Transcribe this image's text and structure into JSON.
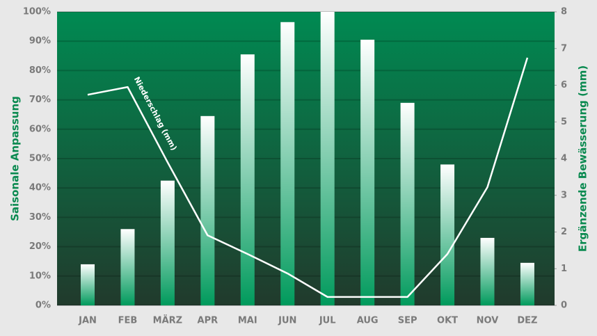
{
  "chart_data": {
    "type": "bar",
    "categories": [
      "JAN",
      "FEB",
      "MÄRZ",
      "APR",
      "MAI",
      "JUN",
      "JUL",
      "AUG",
      "SEP",
      "OKT",
      "NOV",
      "DEZ"
    ],
    "values": [
      14,
      26,
      42.5,
      64.5,
      85.5,
      96.5,
      100,
      90.5,
      69,
      48,
      23,
      14.5
    ],
    "color": "#ffffff",
    "color_bottom": "#009a5c",
    "series": [
      {
        "name": "Niederschlag (mm)",
        "color": "#ffffff",
        "axis": "y2",
        "values": [
          5.74,
          5.95,
          3.9,
          1.91,
          1.4,
          0.87,
          0.23,
          0.23,
          0.23,
          1.4,
          3.22,
          6.75
        ]
      }
    ],
    "ylabel": "Saisonale Anpassung",
    "y2label": "Ergänzende Bewässerung (mm)",
    "ylim": [
      0,
      100
    ],
    "yticks": [
      {
        "value": 0,
        "label": "0%"
      },
      {
        "value": 10,
        "label": "10%"
      },
      {
        "value": 20,
        "label": "20%"
      },
      {
        "value": 30,
        "label": "30%"
      },
      {
        "value": 40,
        "label": "40%"
      },
      {
        "value": 50,
        "label": "50%"
      },
      {
        "value": 60,
        "label": "60%"
      },
      {
        "value": 70,
        "label": "70%"
      },
      {
        "value": 80,
        "label": "80%"
      },
      {
        "value": 90,
        "label": "90%"
      },
      {
        "value": 100,
        "label": "100%"
      }
    ],
    "y2lim": [
      0,
      8
    ],
    "y2ticks": [
      0,
      1,
      2,
      3,
      4,
      5,
      6,
      7,
      8
    ],
    "grid": true
  }
}
